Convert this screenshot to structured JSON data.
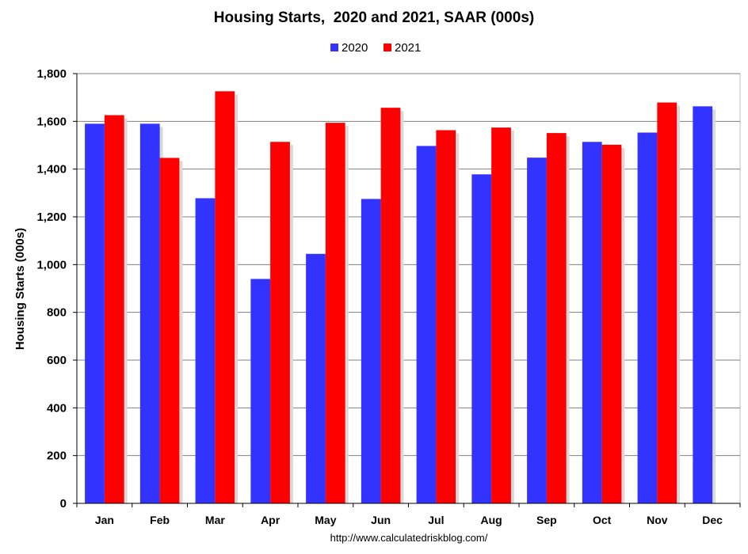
{
  "chart_data": {
    "type": "bar",
    "title": "Housing Starts,  2020 and 2021, SAAR (000s)",
    "ylabel": "Housing Starts (000s)",
    "xlabel": "",
    "categories": [
      "Jan",
      "Feb",
      "Mar",
      "Apr",
      "May",
      "Jun",
      "Jul",
      "Aug",
      "Sep",
      "Oct",
      "Nov",
      "Dec"
    ],
    "series": [
      {
        "name": "2020",
        "color": "#3333ff",
        "values": [
          1590,
          1590,
          1278,
          940,
          1045,
          1275,
          1497,
          1378,
          1448,
          1514,
          1553,
          1663
        ]
      },
      {
        "name": "2021",
        "color": "#ff0000",
        "values": [
          1626,
          1447,
          1726,
          1514,
          1594,
          1657,
          1563,
          1574,
          1551,
          1502,
          1679,
          null
        ]
      }
    ],
    "ylim": [
      0,
      1800
    ],
    "yticks": [
      0,
      200,
      400,
      600,
      800,
      1000,
      1200,
      1400,
      1600,
      1800
    ],
    "ytick_labels": [
      "0",
      "200",
      "400",
      "600",
      "800",
      "1,000",
      "1,200",
      "1,400",
      "1,600",
      "1,800"
    ],
    "grid": true,
    "legend_position": "top-center",
    "source": "http://www.calculatedriskblog.com/"
  }
}
